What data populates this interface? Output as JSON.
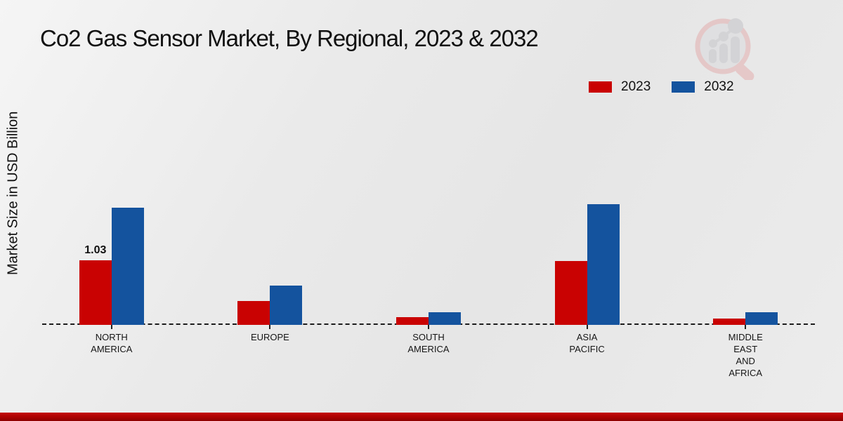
{
  "page": {
    "title": "Co2 Gas Sensor Market, By Regional, 2023 & 2032",
    "y_axis_label": "Market Size in USD Billion"
  },
  "legend": {
    "items": [
      {
        "label": "2023",
        "color": "#c90202"
      },
      {
        "label": "2032",
        "color": "#14539e"
      }
    ]
  },
  "colors": {
    "series_2023": "#c90202",
    "series_2032": "#14539e",
    "axis_line": "#1c1c1c",
    "footer_strip": "#ab0202",
    "background": "#eaeaea"
  },
  "watermark": {
    "name": "market-research-magnifier-logo"
  },
  "chart_data": {
    "type": "bar",
    "title": "Co2 Gas Sensor Market, By Regional, 2023 & 2032",
    "xlabel": "",
    "ylabel": "Market Size in USD Billion",
    "ylim": [
      0,
      2
    ],
    "grid": false,
    "legend_position": "top-right",
    "axis_style": "dashed zero baseline only, no y-axis ticks",
    "categories": [
      "NORTH AMERICA",
      "EUROPE",
      "SOUTH AMERICA",
      "ASIA PACIFIC",
      "MIDDLE EAST AND AFRICA"
    ],
    "category_lines": [
      [
        "NORTH",
        "AMERICA"
      ],
      [
        "EUROPE"
      ],
      [
        "SOUTH",
        "AMERICA"
      ],
      [
        "ASIA",
        "PACIFIC"
      ],
      [
        "MIDDLE",
        "EAST",
        "AND",
        "AFRICA"
      ]
    ],
    "series": [
      {
        "name": "2023",
        "color": "#c90202",
        "values": [
          1.03,
          0.38,
          0.12,
          1.02,
          0.1
        ]
      },
      {
        "name": "2032",
        "color": "#14539e",
        "values": [
          1.88,
          0.63,
          0.2,
          1.93,
          0.2
        ]
      }
    ],
    "data_labels": [
      {
        "series": "2023",
        "category": "NORTH AMERICA",
        "text": "1.03"
      }
    ]
  }
}
